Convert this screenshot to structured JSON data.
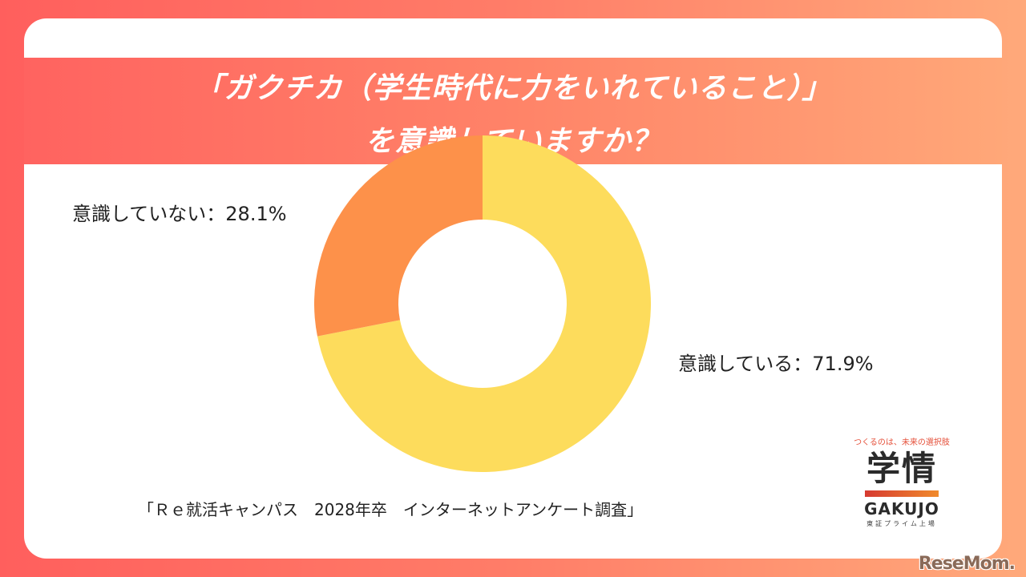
{
  "title": {
    "line1": "「ガクチカ（学生時代に力をいれていること）」",
    "line2": "を意識していますか？"
  },
  "labels": {
    "not_aware": "意識していない：28.1%",
    "aware": "意識している：71.9%"
  },
  "source": "「Ｒｅ就活キャンパス　2028年卒　インターネットアンケート調査」",
  "logo": {
    "tagline": "つくるのは、未来の選択肢",
    "mark": "学情",
    "english": "GAKUJO",
    "sub": "東証プライム上場"
  },
  "watermark": "ReseMom.",
  "colors": {
    "aware": "#fddc5c",
    "not_aware": "#fd914a",
    "title_band_start": "#ff6360",
    "title_band_end": "#ffa778"
  },
  "chart_data": {
    "type": "pie",
    "variant": "donut",
    "title": "「ガクチカ（学生時代に力をいれていること）」を意識していますか？",
    "categories": [
      "意識している",
      "意識していない"
    ],
    "values": [
      71.9,
      28.1
    ],
    "unit": "%",
    "colors": [
      "#fddc5c",
      "#fd914a"
    ],
    "start_angle": "12 o'clock, clockwise",
    "legend": "none (direct labels)",
    "source": "「Ｒｅ就活キャンパス　2028年卒　インターネットアンケート調査」"
  }
}
